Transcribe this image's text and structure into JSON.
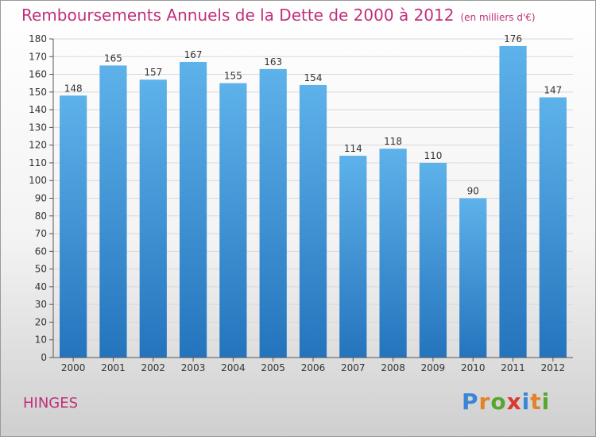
{
  "title": "Remboursements Annuels de la Dette de 2000 à 2012",
  "unit_note": "(en milliers d'€)",
  "place": "HINGES",
  "brand": {
    "letters": [
      "P",
      "r",
      "o",
      "x",
      "i",
      "t",
      "i"
    ],
    "colors": [
      "#3a86d6",
      "#e0832a",
      "#57a62f",
      "#d93a2f",
      "#3a86d6",
      "#e0832a",
      "#57a62f"
    ]
  },
  "colors": {
    "title": "#c0307a",
    "bar_top": "#5eb2ea",
    "bar_bottom": "#2474bd",
    "grid": "#d8d8d8"
  },
  "chart_data": {
    "type": "bar",
    "categories": [
      "2000",
      "2001",
      "2002",
      "2003",
      "2004",
      "2005",
      "2006",
      "2007",
      "2008",
      "2009",
      "2010",
      "2011",
      "2012"
    ],
    "values": [
      148,
      165,
      157,
      167,
      155,
      163,
      154,
      114,
      118,
      110,
      90,
      176,
      147
    ],
    "ylim": [
      0,
      180
    ],
    "ytick_step": 10,
    "grid": true,
    "data_labels": true
  }
}
